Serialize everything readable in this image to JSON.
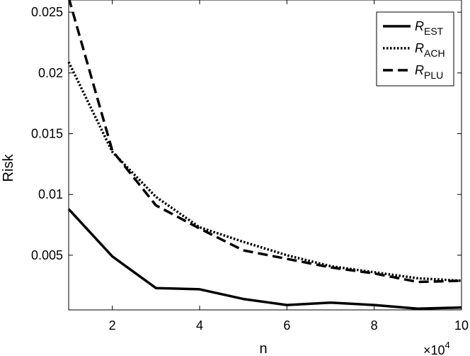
{
  "chart_data": {
    "type": "line",
    "xlabel": "n",
    "ylabel": "Risk",
    "x_multiplier_label": "×10",
    "x_multiplier_exponent": "4",
    "xlim": [
      1,
      10
    ],
    "ylim": [
      0.0005,
      0.026
    ],
    "xticks": [
      2,
      4,
      6,
      8,
      10
    ],
    "xtick_labels": [
      "2",
      "4",
      "6",
      "8",
      "10"
    ],
    "yticks": [
      0.005,
      0.01,
      0.015,
      0.02,
      0.025
    ],
    "ytick_labels": [
      "0.005",
      "0.01",
      "0.015",
      "0.02",
      "0.025"
    ],
    "grid": false,
    "legend_position": "top-right",
    "x": [
      1,
      2,
      3,
      4,
      5,
      6,
      7,
      8,
      9,
      10
    ],
    "series": [
      {
        "key": "est",
        "name_main": "R",
        "name_sub": "EST",
        "style": "solid",
        "values": [
          0.0088,
          0.0049,
          0.0023,
          0.0022,
          0.0014,
          0.0009,
          0.0011,
          0.0009,
          0.0006,
          0.0007
        ]
      },
      {
        "key": "ach",
        "name_main": "R",
        "name_sub": "ACH",
        "style": "dotted",
        "values": [
          0.0209,
          0.0135,
          0.0098,
          0.0073,
          0.0061,
          0.005,
          0.0041,
          0.0036,
          0.0031,
          0.0029
        ]
      },
      {
        "key": "plu",
        "name_main": "R",
        "name_sub": "PLU",
        "style": "dashed",
        "values": [
          0.0262,
          0.0136,
          0.0091,
          0.0072,
          0.0054,
          0.0047,
          0.004,
          0.0035,
          0.0028,
          0.0029
        ]
      }
    ]
  }
}
